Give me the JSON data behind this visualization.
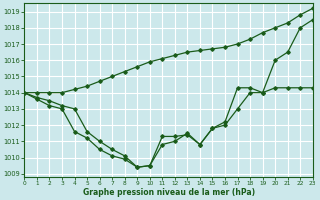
{
  "xlabel": "Graphe pression niveau de la mer (hPa)",
  "background_color": "#cce8eb",
  "grid_color": "#ffffff",
  "line_color": "#1a5c1a",
  "xlim": [
    0,
    23
  ],
  "ylim": [
    1008.8,
    1019.5
  ],
  "yticks": [
    1009,
    1010,
    1011,
    1012,
    1013,
    1014,
    1015,
    1016,
    1017,
    1018,
    1019
  ],
  "xticks": [
    0,
    1,
    2,
    3,
    4,
    5,
    6,
    7,
    8,
    9,
    10,
    11,
    12,
    13,
    14,
    15,
    16,
    17,
    18,
    19,
    20,
    21,
    22,
    23
  ],
  "line_top": [
    1014.0,
    1014.0,
    1014.0,
    1014.0,
    1014.2,
    1014.4,
    1014.7,
    1015.0,
    1015.3,
    1015.6,
    1015.9,
    1016.1,
    1016.3,
    1016.5,
    1016.6,
    1016.7,
    1016.8,
    1017.0,
    1017.3,
    1017.7,
    1018.0,
    1018.3,
    1018.8,
    1019.2
  ],
  "line_mid": [
    1014.0,
    1013.7,
    1013.5,
    1013.2,
    1013.0,
    1011.6,
    1011.0,
    1010.5,
    1010.1,
    1009.4,
    1009.5,
    1011.3,
    1011.3,
    1011.4,
    1010.8,
    1011.8,
    1012.2,
    1014.3,
    1014.3,
    1014.0,
    1016.0,
    1016.5,
    1018.0,
    1018.5
  ],
  "line_bot": [
    1014.0,
    1013.6,
    1013.2,
    1013.0,
    1011.6,
    1011.2,
    1010.5,
    1010.1,
    1009.9,
    1009.4,
    1009.5,
    1010.8,
    1011.0,
    1011.5,
    1010.8,
    1011.8,
    1012.0,
    1013.0,
    1014.0,
    1014.0,
    1014.3,
    1014.3,
    1014.3,
    1014.3
  ]
}
